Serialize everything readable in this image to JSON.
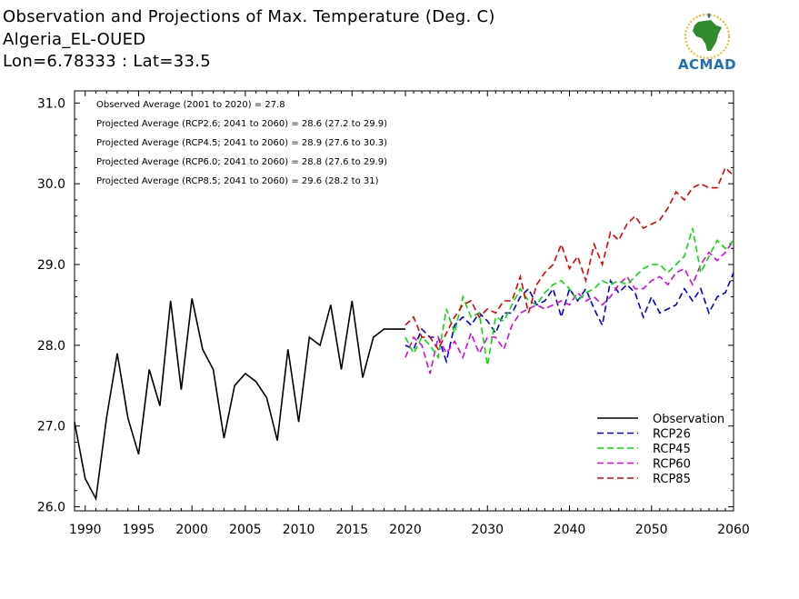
{
  "header": {
    "title": "Observation and Projections of Max. Temperature (Deg. C)",
    "station": "Algeria_EL-OUED",
    "coords": "Lon=6.78333 : Lat=33.5"
  },
  "logo": {
    "text": "ACMAD"
  },
  "colors": {
    "Observation": "#000000",
    "RCP26": "#0000d8",
    "RCP45": "#00e000",
    "RCP60": "#e000e0",
    "RCP85": "#e00000"
  },
  "chart_data": {
    "type": "line",
    "title": "Observation and Projections of Max. Temperature (Deg. C)",
    "xlim": [
      1989,
      2060
    ],
    "ylim": [
      25.95,
      31.15
    ],
    "xticks": [
      1990,
      1995,
      2000,
      2005,
      2010,
      2015,
      2020,
      2030,
      2040,
      2050,
      2060
    ],
    "yticks": [
      26.0,
      27.0,
      28.0,
      29.0,
      30.0,
      31.0
    ],
    "ytick_labels": [
      "26.0",
      "27.0",
      "28.0",
      "29.0",
      "30.0",
      "31.0"
    ],
    "annotations": [
      "Observed Average (2001 to 2020) = 27.8",
      "Projected Average (RCP2.6; 2041 to 2060) = 28.6 (27.2 to 29.9)",
      "Projected Average (RCP4.5; 2041 to 2060) = 28.9 (27.6 to 30.3)",
      "Projected Average (RCP6.0; 2041 to 2060) = 28.8 (27.6 to 29.9)",
      "Projected Average (RCP8.5; 2041 to 2060) = 29.6 (28.2 to 31)"
    ],
    "legend_position": "bottom-right",
    "series": [
      {
        "name": "Observation",
        "style": "solid",
        "x": [
          1989,
          1990,
          1991,
          1992,
          1993,
          1994,
          1995,
          1996,
          1997,
          1998,
          1999,
          2000,
          2001,
          2002,
          2003,
          2004,
          2005,
          2006,
          2007,
          2008,
          2009,
          2010,
          2011,
          2012,
          2013,
          2014,
          2015,
          2016,
          2017,
          2018,
          2019,
          2020
        ],
        "y": [
          27.05,
          26.35,
          26.1,
          27.1,
          27.9,
          27.1,
          26.65,
          27.7,
          27.25,
          28.55,
          27.45,
          28.58,
          27.95,
          27.7,
          26.85,
          27.5,
          27.65,
          27.55,
          27.35,
          26.82,
          27.95,
          27.05,
          28.1,
          28.0,
          28.5,
          27.7,
          28.55,
          27.6,
          28.1,
          28.2,
          28.2,
          28.2
        ]
      },
      {
        "name": "RCP26",
        "style": "dashed",
        "x": [
          2020,
          2021,
          2022,
          2023,
          2024,
          2025,
          2026,
          2027,
          2028,
          2029,
          2030,
          2031,
          2032,
          2033,
          2034,
          2035,
          2036,
          2037,
          2038,
          2039,
          2040,
          2041,
          2042,
          2043,
          2044,
          2045,
          2046,
          2047,
          2048,
          2049,
          2050,
          2051,
          2052,
          2053,
          2054,
          2055,
          2056,
          2057,
          2058,
          2059,
          2060
        ],
        "y": [
          28.0,
          27.95,
          28.2,
          28.1,
          28.1,
          27.8,
          28.25,
          28.35,
          28.25,
          28.4,
          28.3,
          28.15,
          28.4,
          28.4,
          28.6,
          28.7,
          28.5,
          28.55,
          28.7,
          28.35,
          28.7,
          28.55,
          28.7,
          28.45,
          28.25,
          28.8,
          28.65,
          28.75,
          28.65,
          28.35,
          28.6,
          28.4,
          28.45,
          28.5,
          28.7,
          28.55,
          28.7,
          28.4,
          28.6,
          28.65,
          28.9
        ]
      },
      {
        "name": "RCP45",
        "style": "dashed",
        "x": [
          2020,
          2021,
          2022,
          2023,
          2024,
          2025,
          2026,
          2027,
          2028,
          2029,
          2030,
          2031,
          2032,
          2033,
          2034,
          2035,
          2036,
          2037,
          2038,
          2039,
          2040,
          2041,
          2042,
          2043,
          2044,
          2045,
          2046,
          2047,
          2048,
          2049,
          2050,
          2051,
          2052,
          2053,
          2054,
          2055,
          2056,
          2057,
          2058,
          2059,
          2060
        ],
        "y": [
          28.1,
          27.9,
          28.1,
          28.0,
          27.85,
          28.45,
          28.15,
          28.6,
          28.35,
          28.4,
          27.75,
          28.35,
          28.3,
          28.5,
          28.7,
          28.55,
          28.5,
          28.65,
          28.75,
          28.8,
          28.7,
          28.55,
          28.65,
          28.7,
          28.8,
          28.75,
          28.8,
          28.75,
          28.85,
          28.95,
          29.0,
          29.0,
          28.9,
          29.0,
          29.1,
          29.45,
          28.9,
          29.1,
          29.3,
          29.2,
          29.3
        ]
      },
      {
        "name": "RCP60",
        "style": "dashed",
        "x": [
          2020,
          2021,
          2022,
          2023,
          2024,
          2025,
          2026,
          2027,
          2028,
          2029,
          2030,
          2031,
          2032,
          2033,
          2034,
          2035,
          2036,
          2037,
          2038,
          2039,
          2040,
          2041,
          2042,
          2043,
          2044,
          2045,
          2046,
          2047,
          2048,
          2049,
          2050,
          2051,
          2052,
          2053,
          2054,
          2055,
          2056,
          2057,
          2058,
          2059,
          2060
        ],
        "y": [
          27.85,
          28.1,
          28.0,
          27.65,
          28.1,
          27.9,
          28.05,
          27.85,
          28.15,
          27.9,
          28.1,
          28.1,
          27.95,
          28.25,
          28.4,
          28.45,
          28.5,
          28.45,
          28.5,
          28.55,
          28.5,
          28.65,
          28.55,
          28.6,
          28.5,
          28.6,
          28.75,
          28.85,
          28.7,
          28.7,
          28.8,
          28.85,
          28.75,
          28.9,
          28.95,
          28.75,
          29.0,
          29.15,
          29.05,
          29.15,
          29.3
        ]
      },
      {
        "name": "RCP85",
        "style": "dashed",
        "x": [
          2020,
          2021,
          2022,
          2023,
          2024,
          2025,
          2026,
          2027,
          2028,
          2029,
          2030,
          2031,
          2032,
          2033,
          2034,
          2035,
          2036,
          2037,
          2038,
          2039,
          2040,
          2041,
          2042,
          2043,
          2044,
          2045,
          2046,
          2047,
          2048,
          2049,
          2050,
          2051,
          2052,
          2053,
          2054,
          2055,
          2056,
          2057,
          2058,
          2059,
          2060
        ],
        "y": [
          28.25,
          28.35,
          28.1,
          28.1,
          27.95,
          28.15,
          28.35,
          28.5,
          28.55,
          28.35,
          28.45,
          28.4,
          28.55,
          28.55,
          28.85,
          28.4,
          28.75,
          28.9,
          29.0,
          29.25,
          28.95,
          29.1,
          28.8,
          29.25,
          29.0,
          29.4,
          29.3,
          29.5,
          29.6,
          29.45,
          29.5,
          29.55,
          29.7,
          29.9,
          29.8,
          29.95,
          30.0,
          29.95,
          29.95,
          30.2,
          30.1
        ]
      }
    ]
  }
}
